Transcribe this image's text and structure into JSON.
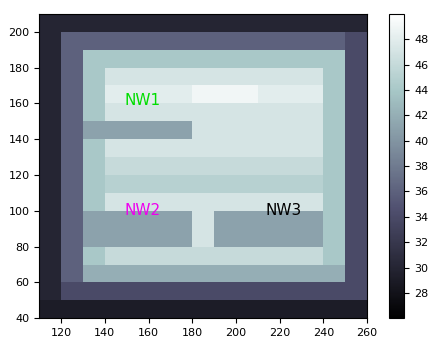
{
  "chart_data": {
    "type": "heatmap",
    "x_edges": [
      110,
      120,
      130,
      140,
      150,
      160,
      170,
      180,
      190,
      200,
      210,
      220,
      230,
      240,
      250,
      260
    ],
    "y_edges": [
      40,
      50,
      60,
      70,
      80,
      90,
      100,
      110,
      120,
      130,
      140,
      150,
      160,
      170,
      180,
      190,
      200,
      210
    ],
    "cells": [
      [
        29,
        29,
        29,
        29,
        29,
        29,
        29,
        29,
        29,
        29,
        29,
        29,
        29,
        29,
        29
      ],
      [
        30,
        34,
        34,
        34,
        34,
        34,
        34,
        34,
        34,
        34,
        34,
        34,
        34,
        34,
        34
      ],
      [
        30,
        36,
        42,
        42,
        42,
        42,
        42,
        42,
        42,
        42,
        42,
        42,
        42,
        42,
        34
      ],
      [
        30,
        36,
        44,
        46,
        46,
        46,
        46,
        46,
        46,
        46,
        46,
        46,
        46,
        44,
        34
      ],
      [
        30,
        36,
        41,
        41,
        41,
        41,
        41,
        47,
        41,
        41,
        41,
        41,
        41,
        44,
        34
      ],
      [
        30,
        36,
        41,
        41,
        41,
        41,
        41,
        47,
        41,
        41,
        41,
        41,
        41,
        44,
        34
      ],
      [
        30,
        36,
        44,
        47,
        47,
        47,
        47,
        47,
        47,
        47,
        47,
        47,
        47,
        44,
        34
      ],
      [
        30,
        36,
        44,
        45,
        45,
        45,
        45,
        45,
        45,
        45,
        45,
        45,
        45,
        44,
        34
      ],
      [
        30,
        36,
        44,
        46,
        46,
        46,
        46,
        46,
        46,
        46,
        46,
        46,
        46,
        44,
        34
      ],
      [
        30,
        36,
        44,
        47,
        47,
        47,
        47,
        47,
        47,
        47,
        47,
        47,
        47,
        44,
        34
      ],
      [
        30,
        36,
        41,
        41,
        41,
        41,
        41,
        47,
        47,
        47,
        47,
        47,
        47,
        44,
        34
      ],
      [
        30,
        36,
        44,
        47,
        47,
        47,
        47,
        47,
        47,
        47,
        47,
        47,
        47,
        44,
        34
      ],
      [
        30,
        36,
        44,
        48,
        48,
        48,
        48,
        49,
        49,
        49,
        48,
        48,
        48,
        44,
        34
      ],
      [
        30,
        36,
        44,
        47,
        47,
        47,
        47,
        47,
        47,
        47,
        47,
        47,
        47,
        44,
        34
      ],
      [
        30,
        36,
        44,
        44,
        44,
        44,
        44,
        44,
        44,
        44,
        44,
        44,
        44,
        44,
        34
      ],
      [
        30,
        36,
        36,
        36,
        36,
        36,
        36,
        36,
        36,
        36,
        36,
        36,
        36,
        36,
        34
      ],
      [
        30,
        30,
        30,
        30,
        30,
        30,
        30,
        30,
        30,
        30,
        30,
        30,
        30,
        30,
        30
      ]
    ],
    "xlim": [
      110,
      260
    ],
    "xticks": [
      120,
      140,
      160,
      180,
      200,
      220,
      240,
      260
    ],
    "ylim": [
      40,
      210
    ],
    "yticks": [
      40,
      60,
      80,
      100,
      120,
      140,
      160,
      180,
      200
    ],
    "colorbar_lim": [
      26,
      50
    ],
    "colorbar_ticks": [
      28,
      30,
      32,
      34,
      36,
      38,
      40,
      42,
      44,
      46,
      48
    ],
    "annotations": [
      {
        "text": "NW1",
        "color": "#00dd00"
      },
      {
        "text": "NW2",
        "color": "#ee00ee"
      },
      {
        "text": "NW3",
        "color": "#000000"
      }
    ]
  }
}
